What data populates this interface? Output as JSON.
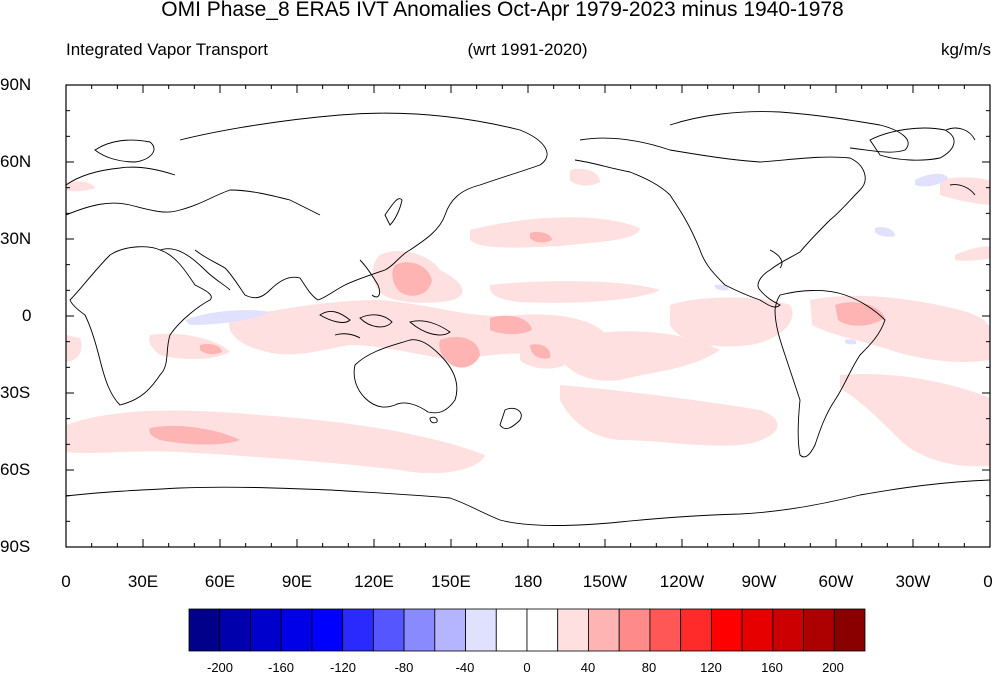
{
  "header": {
    "title": "OMI Phase_8 ERA5 IVT Anomalies Oct-Apr 1979-2023 minus 1940-1978",
    "left": "Integrated Vapor Transport",
    "center": "(wrt 1991-2020)",
    "right": "kg/m/s"
  },
  "map": {
    "lat_labels": [
      "90N",
      "60N",
      "30N",
      "0",
      "30S",
      "60S",
      "90S"
    ],
    "lon_labels": [
      "0",
      "30E",
      "60E",
      "90E",
      "120E",
      "150E",
      "180",
      "150W",
      "120W",
      "90W",
      "60W",
      "30W",
      "0"
    ]
  },
  "colorbar": {
    "labels": [
      "-200",
      "-160",
      "-120",
      "-80",
      "-40",
      "0",
      "40",
      "80",
      "120",
      "160",
      "200"
    ],
    "colors": [
      "#00008a",
      "#0000ad",
      "#0000cc",
      "#0000e6",
      "#0000ff",
      "#2a2aff",
      "#5656ff",
      "#8a8aff",
      "#b4b4ff",
      "#e0e0ff",
      "#ffffff",
      "#ffffff",
      "#ffe0e0",
      "#ffb4b4",
      "#ff8a8a",
      "#ff5656",
      "#ff2a2a",
      "#ff0000",
      "#e60000",
      "#cc0000",
      "#ad0000",
      "#8a0000"
    ]
  }
}
